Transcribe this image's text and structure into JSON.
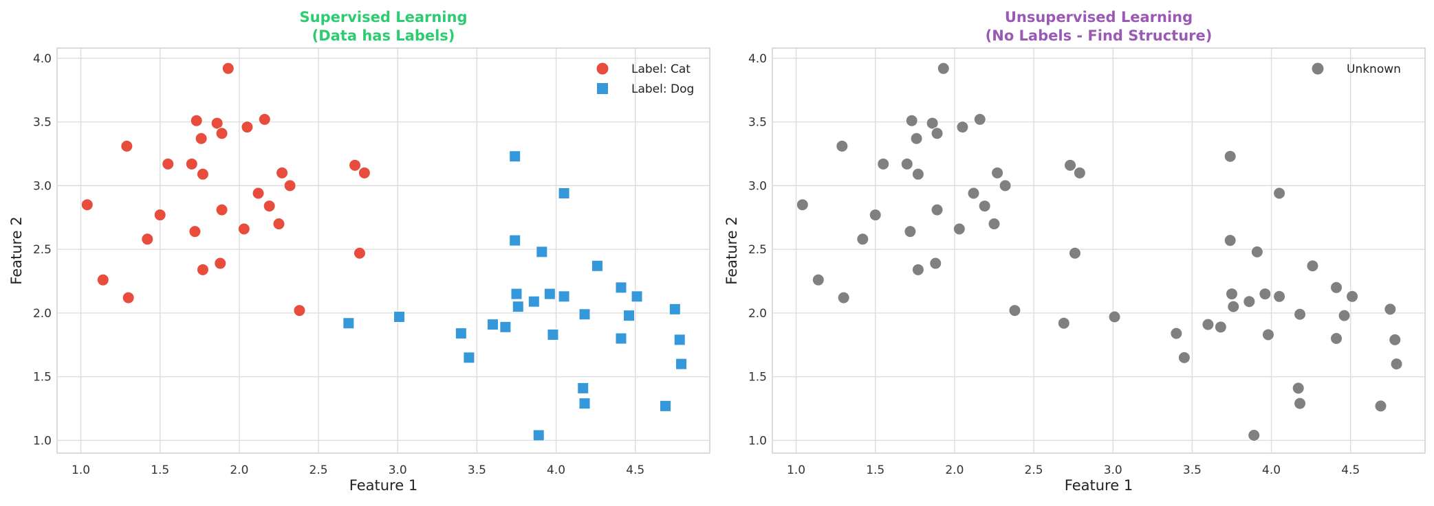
{
  "chart_data": [
    {
      "type": "scatter",
      "title_line1": "Supervised Learning",
      "title_line2": "(Data has Labels)",
      "title_color": "#2ecc71",
      "xlabel": "Feature 1",
      "ylabel": "Feature 2",
      "xlim": [
        0.85,
        4.97
      ],
      "ylim": [
        0.9,
        4.08
      ],
      "xticks": [
        "1.0",
        "1.5",
        "2.0",
        "2.5",
        "3.0",
        "3.5",
        "4.0",
        "4.5"
      ],
      "yticks": [
        "1.0",
        "1.5",
        "2.0",
        "2.5",
        "3.0",
        "3.5",
        "4.0"
      ],
      "grid": true,
      "legend_position": "top-right",
      "series": [
        {
          "name": "Label: Cat",
          "marker": "circle",
          "color": "#e74c3c",
          "points": [
            [
              1.93,
              3.92
            ],
            [
              1.73,
              3.51
            ],
            [
              1.86,
              3.49
            ],
            [
              2.16,
              3.52
            ],
            [
              1.76,
              3.37
            ],
            [
              1.89,
              3.41
            ],
            [
              2.05,
              3.46
            ],
            [
              1.29,
              3.31
            ],
            [
              1.55,
              3.17
            ],
            [
              1.7,
              3.17
            ],
            [
              1.77,
              3.09
            ],
            [
              2.27,
              3.1
            ],
            [
              2.32,
              3.0
            ],
            [
              2.73,
              3.16
            ],
            [
              2.79,
              3.1
            ],
            [
              1.04,
              2.85
            ],
            [
              2.12,
              2.94
            ],
            [
              2.19,
              2.84
            ],
            [
              1.89,
              2.81
            ],
            [
              1.5,
              2.77
            ],
            [
              2.25,
              2.7
            ],
            [
              2.03,
              2.66
            ],
            [
              1.72,
              2.64
            ],
            [
              1.42,
              2.58
            ],
            [
              2.76,
              2.47
            ],
            [
              1.14,
              2.26
            ],
            [
              1.77,
              2.34
            ],
            [
              1.88,
              2.39
            ],
            [
              1.3,
              2.12
            ],
            [
              2.38,
              2.02
            ]
          ]
        },
        {
          "name": "Label: Dog",
          "marker": "square",
          "color": "#3498db",
          "points": [
            [
              3.74,
              3.23
            ],
            [
              4.05,
              2.94
            ],
            [
              3.74,
              2.57
            ],
            [
              3.91,
              2.48
            ],
            [
              4.26,
              2.37
            ],
            [
              4.41,
              2.2
            ],
            [
              4.51,
              2.13
            ],
            [
              3.75,
              2.15
            ],
            [
              3.96,
              2.15
            ],
            [
              4.05,
              2.13
            ],
            [
              3.86,
              2.09
            ],
            [
              3.76,
              2.05
            ],
            [
              4.75,
              2.03
            ],
            [
              4.18,
              1.99
            ],
            [
              4.46,
              1.98
            ],
            [
              2.69,
              1.92
            ],
            [
              3.01,
              1.97
            ],
            [
              3.6,
              1.91
            ],
            [
              3.68,
              1.89
            ],
            [
              3.4,
              1.84
            ],
            [
              3.98,
              1.83
            ],
            [
              4.41,
              1.8
            ],
            [
              4.78,
              1.79
            ],
            [
              3.45,
              1.65
            ],
            [
              4.79,
              1.6
            ],
            [
              4.17,
              1.41
            ],
            [
              4.18,
              1.29
            ],
            [
              4.69,
              1.27
            ],
            [
              3.89,
              1.04
            ]
          ]
        }
      ]
    },
    {
      "type": "scatter",
      "title_line1": "Unsupervised Learning",
      "title_line2": "(No Labels - Find Structure)",
      "title_color": "#9b59b6",
      "xlabel": "Feature 1",
      "ylabel": "Feature 2",
      "xlim": [
        0.85,
        4.97
      ],
      "ylim": [
        0.9,
        4.08
      ],
      "xticks": [
        "1.0",
        "1.5",
        "2.0",
        "2.5",
        "3.0",
        "3.5",
        "4.0",
        "4.5"
      ],
      "yticks": [
        "1.0",
        "1.5",
        "2.0",
        "2.5",
        "3.0",
        "3.5",
        "4.0"
      ],
      "grid": true,
      "legend_position": "top-right",
      "series": [
        {
          "name": "Unknown",
          "marker": "circle",
          "color": "#808080",
          "points": [
            [
              1.93,
              3.92
            ],
            [
              1.73,
              3.51
            ],
            [
              1.86,
              3.49
            ],
            [
              2.16,
              3.52
            ],
            [
              1.76,
              3.37
            ],
            [
              1.89,
              3.41
            ],
            [
              2.05,
              3.46
            ],
            [
              1.29,
              3.31
            ],
            [
              1.55,
              3.17
            ],
            [
              1.7,
              3.17
            ],
            [
              1.77,
              3.09
            ],
            [
              2.27,
              3.1
            ],
            [
              2.32,
              3.0
            ],
            [
              2.73,
              3.16
            ],
            [
              2.79,
              3.1
            ],
            [
              1.04,
              2.85
            ],
            [
              2.12,
              2.94
            ],
            [
              2.19,
              2.84
            ],
            [
              1.89,
              2.81
            ],
            [
              1.5,
              2.77
            ],
            [
              2.25,
              2.7
            ],
            [
              2.03,
              2.66
            ],
            [
              1.72,
              2.64
            ],
            [
              1.42,
              2.58
            ],
            [
              2.76,
              2.47
            ],
            [
              1.14,
              2.26
            ],
            [
              1.77,
              2.34
            ],
            [
              1.88,
              2.39
            ],
            [
              1.3,
              2.12
            ],
            [
              2.38,
              2.02
            ],
            [
              3.74,
              3.23
            ],
            [
              4.05,
              2.94
            ],
            [
              3.74,
              2.57
            ],
            [
              3.91,
              2.48
            ],
            [
              4.26,
              2.37
            ],
            [
              4.41,
              2.2
            ],
            [
              4.51,
              2.13
            ],
            [
              3.75,
              2.15
            ],
            [
              3.96,
              2.15
            ],
            [
              4.05,
              2.13
            ],
            [
              3.86,
              2.09
            ],
            [
              3.76,
              2.05
            ],
            [
              4.75,
              2.03
            ],
            [
              4.18,
              1.99
            ],
            [
              4.46,
              1.98
            ],
            [
              2.69,
              1.92
            ],
            [
              3.01,
              1.97
            ],
            [
              3.6,
              1.91
            ],
            [
              3.68,
              1.89
            ],
            [
              3.4,
              1.84
            ],
            [
              3.98,
              1.83
            ],
            [
              4.41,
              1.8
            ],
            [
              4.78,
              1.79
            ],
            [
              3.45,
              1.65
            ],
            [
              4.79,
              1.6
            ],
            [
              4.17,
              1.41
            ],
            [
              4.18,
              1.29
            ],
            [
              4.69,
              1.27
            ],
            [
              3.89,
              1.04
            ]
          ]
        }
      ]
    }
  ]
}
